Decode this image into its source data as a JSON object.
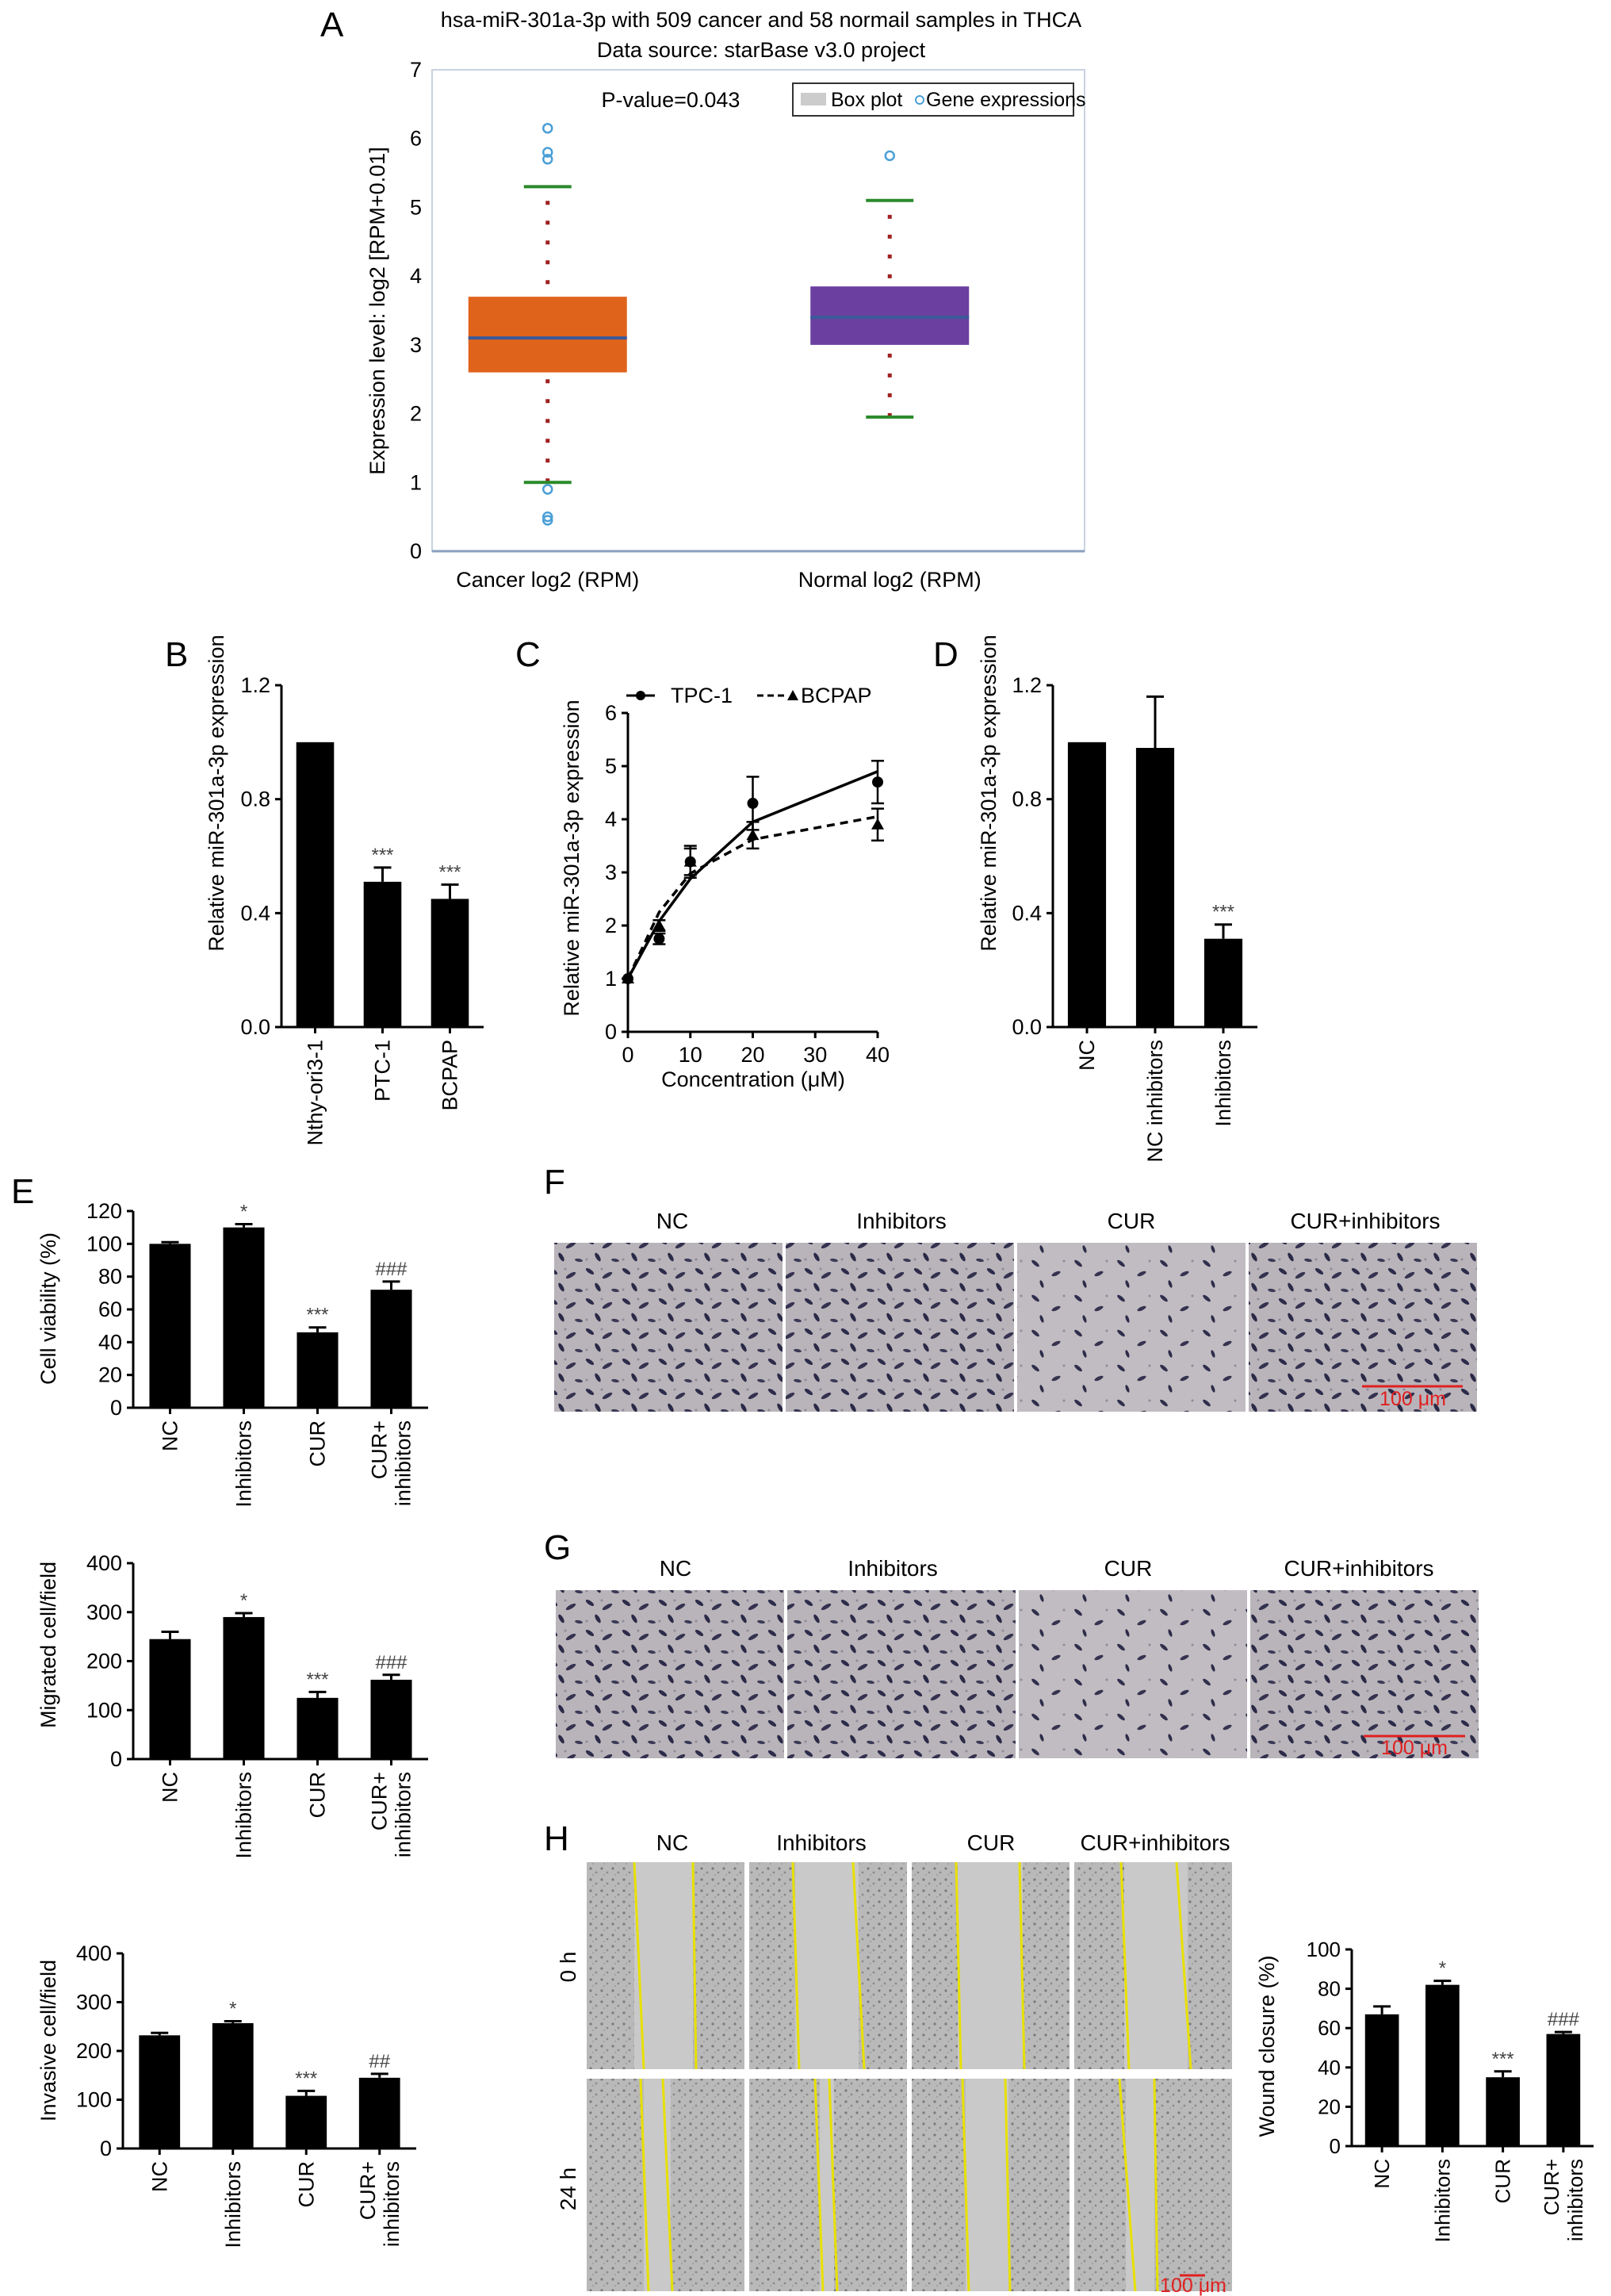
{
  "panel_letters": {
    "A": "A",
    "B": "B",
    "C": "C",
    "D": "D",
    "E": "E",
    "F": "F",
    "G": "G",
    "H": "H"
  },
  "chart_data": [
    {
      "id": "A",
      "type": "box",
      "title": "hsa-miR-301a-3p with 509 cancer and 58 normail samples in THCA",
      "subtitle": "Data source: starBase v3.0 project",
      "ylabel": "Expression level: log2 [RPM+0.01]",
      "ylim": [
        0,
        7
      ],
      "yticks": [
        "0",
        "1",
        "2",
        "3",
        "4",
        "5",
        "6",
        "7"
      ],
      "annotation": "P-value=0.043",
      "legend": [
        "Box plot",
        "Gene expressions"
      ],
      "categories": [
        "Cancer log2 (RPM)",
        "Normal log2 (RPM)"
      ],
      "colors": [
        "#e0631c",
        "#6b3fa0"
      ],
      "boxes": [
        {
          "q1": 2.6,
          "median": 3.1,
          "q3": 3.7,
          "whisker_low": 1.0,
          "whisker_high": 5.3,
          "outliers": [
            6.15,
            5.8,
            5.7,
            0.9,
            0.5,
            0.45
          ]
        },
        {
          "q1": 3.0,
          "median": 3.4,
          "q3": 3.85,
          "whisker_low": 1.95,
          "whisker_high": 5.1,
          "outliers": [
            5.75
          ]
        }
      ]
    },
    {
      "id": "B",
      "type": "bar",
      "ylabel": "Relative miR-301a-3p expression",
      "ylim": [
        0,
        1.2
      ],
      "yticks": [
        "0.0",
        "0.4",
        "0.8",
        "1.2"
      ],
      "categories": [
        "Nthy-ori3-1",
        "PTC-1",
        "BCPAP"
      ],
      "values": [
        1.0,
        0.51,
        0.45
      ],
      "errors": [
        0,
        0.05,
        0.05
      ],
      "sig": [
        "",
        "***",
        "***"
      ]
    },
    {
      "id": "C",
      "type": "line",
      "ylabel": "Relative miR-301a-3p expression",
      "xlabel": "Concentration (μM)",
      "ylim": [
        0,
        6
      ],
      "yticks": [
        "0",
        "1",
        "2",
        "3",
        "4",
        "5",
        "6"
      ],
      "xlim": [
        0,
        40
      ],
      "xticks": [
        "0",
        "10",
        "20",
        "30",
        "40"
      ],
      "series": [
        {
          "name": "TPC-1",
          "x": [
            0,
            5,
            10,
            20,
            40
          ],
          "y": [
            1.0,
            1.75,
            3.2,
            4.3,
            4.7
          ],
          "err": [
            0.05,
            0.1,
            0.3,
            0.5,
            0.4
          ],
          "fit": [
            1.0,
            2.08,
            2.88,
            3.95,
            4.9
          ]
        },
        {
          "name": "BCPAP",
          "x": [
            0,
            5,
            10,
            20,
            40
          ],
          "y": [
            1.0,
            2.0,
            3.2,
            3.7,
            3.9
          ],
          "err": [
            0.05,
            0.1,
            0.25,
            0.25,
            0.3
          ],
          "fit": [
            1.0,
            2.25,
            2.98,
            3.62,
            4.05
          ]
        }
      ]
    },
    {
      "id": "D",
      "type": "bar",
      "ylabel": "Relative miR-301a-3p expression",
      "ylim": [
        0,
        1.2
      ],
      "yticks": [
        "0.0",
        "0.4",
        "0.8",
        "1.2"
      ],
      "categories": [
        "NC",
        "NC inhibitors",
        "Inhibitors"
      ],
      "values": [
        1.0,
        0.98,
        0.31
      ],
      "errors": [
        0,
        0.18,
        0.05
      ],
      "sig": [
        "",
        "",
        "***"
      ]
    },
    {
      "id": "E1",
      "type": "bar",
      "ylabel": "Cell viability (%)",
      "ylim": [
        0,
        120
      ],
      "yticks": [
        "0",
        "20",
        "40",
        "60",
        "80",
        "100",
        "120"
      ],
      "categories": [
        "NC",
        "Inhibitors",
        "CUR",
        "CUR+\ninhibitors"
      ],
      "values": [
        100,
        110,
        46,
        72
      ],
      "errors": [
        1,
        2,
        3,
        5
      ],
      "sig": [
        "",
        "*",
        "***",
        "###"
      ]
    },
    {
      "id": "E2",
      "type": "bar",
      "ylabel": "Migrated cell/field",
      "ylim": [
        0,
        400
      ],
      "yticks": [
        "0",
        "100",
        "200",
        "300",
        "400"
      ],
      "categories": [
        "NC",
        "Inhibitors",
        "CUR",
        "CUR+\ninhibitors"
      ],
      "values": [
        245,
        290,
        125,
        162
      ],
      "errors": [
        15,
        8,
        12,
        10
      ],
      "sig": [
        "",
        "*",
        "***",
        "###"
      ]
    },
    {
      "id": "E3",
      "type": "bar",
      "ylabel": "Invasive cell/field",
      "ylim": [
        0,
        400
      ],
      "yticks": [
        "0",
        "100",
        "200",
        "300",
        "400"
      ],
      "categories": [
        "NC",
        "Inhibitors",
        "CUR",
        "CUR+\ninhibitors"
      ],
      "values": [
        232,
        257,
        108,
        145
      ],
      "errors": [
        5,
        4,
        10,
        8
      ],
      "sig": [
        "",
        "*",
        "***",
        "##"
      ]
    },
    {
      "id": "H",
      "type": "bar",
      "ylabel": "Wound closure (%)",
      "ylim": [
        0,
        100
      ],
      "yticks": [
        "0",
        "20",
        "40",
        "60",
        "80",
        "100"
      ],
      "categories": [
        "NC",
        "Inhibitors",
        "CUR",
        "CUR+\ninhibitors"
      ],
      "values": [
        67,
        82,
        35,
        57
      ],
      "errors": [
        4,
        2,
        3,
        1
      ],
      "sig": [
        "",
        "*",
        "***",
        "###"
      ]
    }
  ],
  "micrographs": {
    "F": {
      "labels": [
        "NC",
        "Inhibitors",
        "CUR",
        "CUR+inhibitors"
      ],
      "scale": "100 μm"
    },
    "G": {
      "labels": [
        "NC",
        "Inhibitors",
        "CUR",
        "CUR+inhibitors"
      ],
      "scale": "100 μm"
    },
    "H": {
      "labels": [
        "NC",
        "Inhibitors",
        "CUR",
        "CUR+inhibitors"
      ],
      "rows": [
        "0 h",
        "24 h"
      ],
      "scale": "100 μm"
    }
  }
}
